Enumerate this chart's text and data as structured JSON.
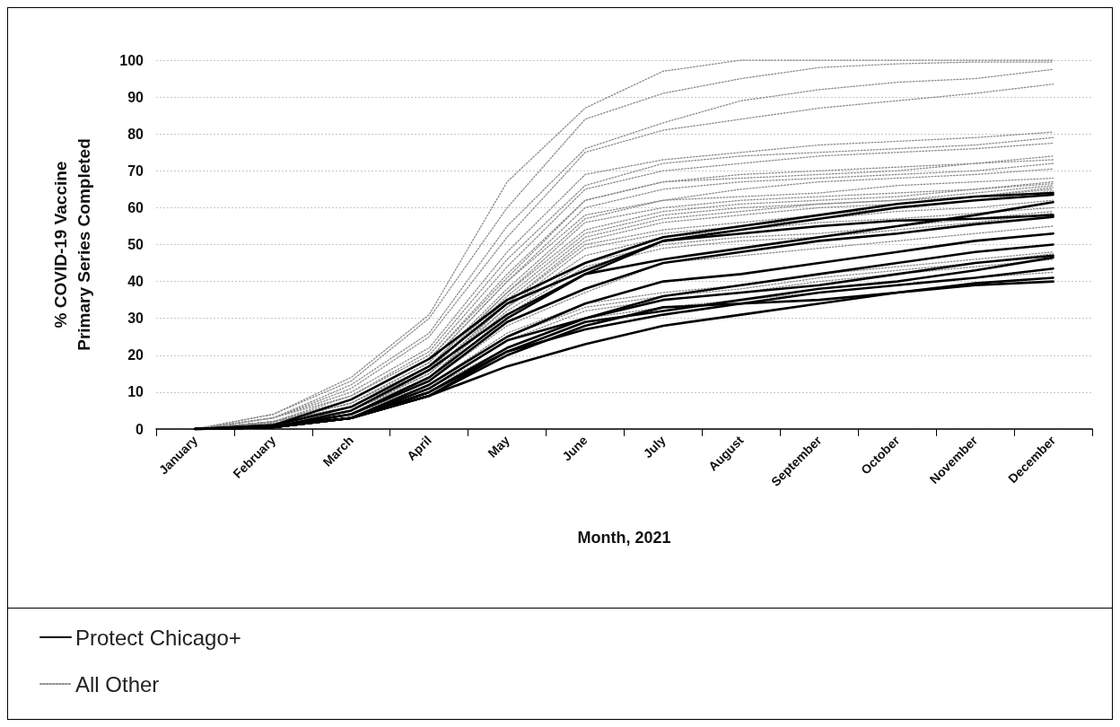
{
  "chart_data": {
    "type": "line",
    "xlabel": "Month, 2021",
    "ylabel": "% COVID-19 Vaccine\nPrimary Series Completed",
    "categories": [
      "January",
      "February",
      "March",
      "April",
      "May",
      "June",
      "July",
      "August",
      "September",
      "October",
      "November",
      "December"
    ],
    "ylim": [
      0,
      100
    ],
    "yticks": [
      0,
      10,
      20,
      30,
      40,
      50,
      60,
      70,
      80,
      90,
      100
    ],
    "grid": "y",
    "legend": "bottom left",
    "marker": "none",
    "series": [
      {
        "name": "All Other",
        "color": "#8c8c8c",
        "line_style": "dotted",
        "values": [
          0,
          4,
          14,
          31,
          67,
          87,
          97,
          100,
          100,
          100,
          100,
          100
        ]
      },
      {
        "color": "#8c8c8c",
        "line_style": "dotted",
        "values": [
          0,
          4,
          13,
          30,
          60,
          84,
          91,
          95,
          98,
          99,
          99.5,
          99.5
        ]
      },
      {
        "color": "#8c8c8c",
        "line_style": "dotted",
        "values": [
          0,
          3,
          12,
          26,
          55,
          76,
          83,
          89,
          92,
          94,
          95,
          97.5
        ]
      },
      {
        "color": "#8c8c8c",
        "line_style": "dotted",
        "values": [
          0,
          3,
          11,
          25,
          52,
          75,
          81,
          84,
          87,
          89,
          91,
          93.5
        ]
      },
      {
        "color": "#8c8c8c",
        "line_style": "dotted",
        "values": [
          0,
          3,
          10,
          22,
          48,
          69,
          73,
          75,
          77,
          78,
          79,
          80.5
        ]
      },
      {
        "color": "#8c8c8c",
        "line_style": "dotted",
        "values": [
          0,
          3,
          9,
          21,
          46,
          66,
          72,
          74,
          75,
          76,
          77,
          79
        ]
      },
      {
        "color": "#8c8c8c",
        "line_style": "dotted",
        "values": [
          0,
          2,
          9,
          20,
          44,
          65,
          70,
          72,
          74,
          75,
          76,
          77.5
        ]
      },
      {
        "color": "#8c8c8c",
        "line_style": "dotted",
        "values": [
          0,
          2,
          8,
          19,
          42,
          62,
          67,
          69,
          70,
          71,
          72,
          74
        ]
      },
      {
        "color": "#8c8c8c",
        "line_style": "dotted",
        "values": [
          0,
          2,
          8,
          19,
          41,
          62,
          67,
          68,
          69,
          70,
          72,
          73
        ]
      },
      {
        "color": "#8c8c8c",
        "line_style": "dotted",
        "values": [
          0,
          2,
          7,
          18,
          40,
          60,
          65,
          67,
          68,
          69,
          70,
          72
        ]
      },
      {
        "color": "#8c8c8c",
        "line_style": "dotted",
        "values": [
          0,
          2,
          7,
          18,
          40,
          58,
          62,
          65,
          67,
          68,
          69,
          70.5
        ]
      },
      {
        "color": "#8c8c8c",
        "line_style": "dotted",
        "values": [
          0,
          2,
          7,
          17,
          38,
          57,
          62,
          63,
          64,
          66,
          67,
          68
        ]
      },
      {
        "color": "#8c8c8c",
        "line_style": "dotted",
        "values": [
          0,
          2,
          6,
          17,
          37,
          56,
          60,
          62,
          63,
          64,
          65,
          67
        ]
      },
      {
        "color": "#8c8c8c",
        "line_style": "dotted",
        "values": [
          0,
          2,
          6,
          16,
          37,
          54,
          59,
          61,
          62,
          63,
          65,
          66.5
        ]
      },
      {
        "color": "#8c8c8c",
        "line_style": "dotted",
        "values": [
          0,
          2,
          6,
          16,
          36,
          53,
          58,
          60,
          61,
          62,
          64,
          66
        ]
      },
      {
        "color": "#8c8c8c",
        "line_style": "dotted",
        "values": [
          0,
          1.5,
          6,
          16,
          35,
          52,
          57,
          59,
          61,
          62,
          63,
          65.5
        ]
      },
      {
        "color": "#8c8c8c",
        "line_style": "dotted",
        "values": [
          0,
          1.5,
          5,
          15,
          34,
          51,
          56,
          58,
          60,
          61,
          63,
          65
        ]
      },
      {
        "color": "#8c8c8c",
        "line_style": "dotted",
        "values": [
          0,
          1.5,
          5,
          15,
          34,
          50,
          54,
          56,
          58,
          60,
          62,
          64.5
        ]
      },
      {
        "color": "#8c8c8c",
        "line_style": "dotted",
        "values": [
          0,
          1.5,
          5,
          15,
          33,
          49,
          53,
          55,
          57,
          59,
          60,
          62
        ]
      },
      {
        "color": "#8c8c8c",
        "line_style": "dotted",
        "values": [
          0,
          1.5,
          5,
          14,
          33,
          47,
          52,
          54,
          56,
          57,
          58.5,
          60
        ]
      },
      {
        "color": "#8c8c8c",
        "line_style": "dotted",
        "values": [
          0,
          1.5,
          5,
          14,
          32,
          45,
          50,
          52,
          53,
          55,
          57,
          59
        ]
      },
      {
        "color": "#8c8c8c",
        "line_style": "dotted",
        "values": [
          0,
          1,
          4,
          13,
          31,
          44,
          49,
          51,
          52,
          54,
          56,
          58.5
        ]
      },
      {
        "color": "#8c8c8c",
        "line_style": "dotted",
        "values": [
          0,
          1,
          4,
          13,
          28,
          37,
          45,
          47,
          49,
          51,
          53,
          55
        ]
      },
      {
        "color": "#8c8c8c",
        "line_style": "dotted",
        "values": [
          0,
          1,
          4,
          12,
          26,
          34,
          37,
          39,
          42,
          44,
          46,
          48
        ]
      },
      {
        "color": "#8c8c8c",
        "line_style": "dotted",
        "values": [
          0,
          1,
          4,
          12,
          25,
          33,
          36,
          38,
          41,
          43,
          45,
          47.5
        ]
      },
      {
        "color": "#8c8c8c",
        "line_style": "dotted",
        "values": [
          0,
          1,
          4,
          11,
          24,
          32,
          35,
          37,
          40,
          42,
          44,
          46
        ]
      },
      {
        "color": "#8c8c8c",
        "line_style": "dotted",
        "values": [
          0,
          1,
          3,
          11,
          22,
          30,
          33,
          35,
          37,
          39,
          41,
          42.5
        ]
      },
      {
        "name": "Protect Chicago+",
        "color": "#000000",
        "line_style": "solid",
        "values": [
          0,
          1,
          8,
          19,
          35,
          45,
          52,
          55,
          58,
          61,
          63,
          64
        ]
      },
      {
        "color": "#000000",
        "line_style": "solid",
        "values": [
          0,
          1,
          6,
          17,
          34,
          43,
          51,
          54,
          57,
          60,
          62,
          63.5
        ]
      },
      {
        "color": "#000000",
        "line_style": "solid",
        "values": [
          0,
          0.5,
          5,
          16,
          31,
          42,
          46,
          49,
          52,
          55,
          58,
          61.5
        ]
      },
      {
        "color": "#000000",
        "line_style": "solid",
        "values": [
          0,
          0.5,
          4,
          14,
          30,
          42,
          51,
          53,
          55,
          56.5,
          57,
          58
        ]
      },
      {
        "color": "#000000",
        "line_style": "solid",
        "values": [
          0,
          0.5,
          4,
          13,
          29,
          38,
          45,
          48,
          51,
          53,
          55.5,
          57.5
        ]
      },
      {
        "color": "#000000",
        "line_style": "solid",
        "values": [
          0,
          0.5,
          3,
          12,
          25,
          34,
          40,
          42,
          45,
          48,
          51,
          53
        ]
      },
      {
        "color": "#000000",
        "line_style": "solid",
        "values": [
          0,
          0.5,
          3,
          11,
          24,
          30,
          36,
          39,
          42,
          45,
          48,
          50
        ]
      },
      {
        "color": "#000000",
        "line_style": "solid",
        "values": [
          0,
          0.5,
          3,
          10,
          22,
          30,
          35,
          37,
          39,
          42,
          45,
          47
        ]
      },
      {
        "color": "#000000",
        "line_style": "solid",
        "values": [
          0,
          0.5,
          3,
          10,
          21,
          29,
          32,
          35,
          38,
          40,
          43,
          46.5
        ]
      },
      {
        "color": "#000000",
        "line_style": "solid",
        "values": [
          0,
          0.5,
          3,
          9,
          21,
          27,
          31,
          34,
          37,
          39,
          41,
          43.5
        ]
      },
      {
        "color": "#000000",
        "line_style": "solid",
        "values": [
          0,
          0.5,
          3,
          9,
          17,
          23,
          28,
          31,
          34,
          37,
          39,
          40
        ]
      },
      {
        "color": "#000000",
        "line_style": "solid",
        "values": [
          0,
          0.5,
          3,
          9,
          20,
          28,
          33,
          34,
          35,
          37,
          39.5,
          41
        ]
      }
    ]
  }
}
